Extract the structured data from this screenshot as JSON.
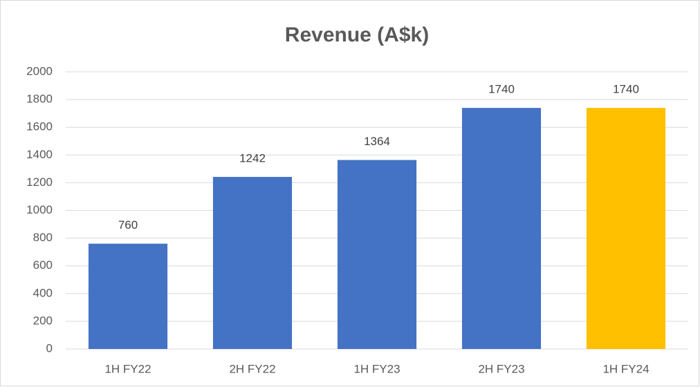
{
  "chart_data": {
    "type": "bar",
    "title": "Revenue (A$k)",
    "categories": [
      "1H FY22",
      "2H FY22",
      "1H FY23",
      "2H FY23",
      "1H FY24"
    ],
    "values": [
      760,
      1242,
      1364,
      1740,
      1740
    ],
    "colors": [
      "#4472c4",
      "#4472c4",
      "#4472c4",
      "#4472c4",
      "#ffc000"
    ],
    "ylim": [
      0,
      2000
    ],
    "yticks": [
      0,
      200,
      400,
      600,
      800,
      1000,
      1200,
      1400,
      1600,
      1800,
      2000
    ],
    "grid": true,
    "data_labels": true
  }
}
